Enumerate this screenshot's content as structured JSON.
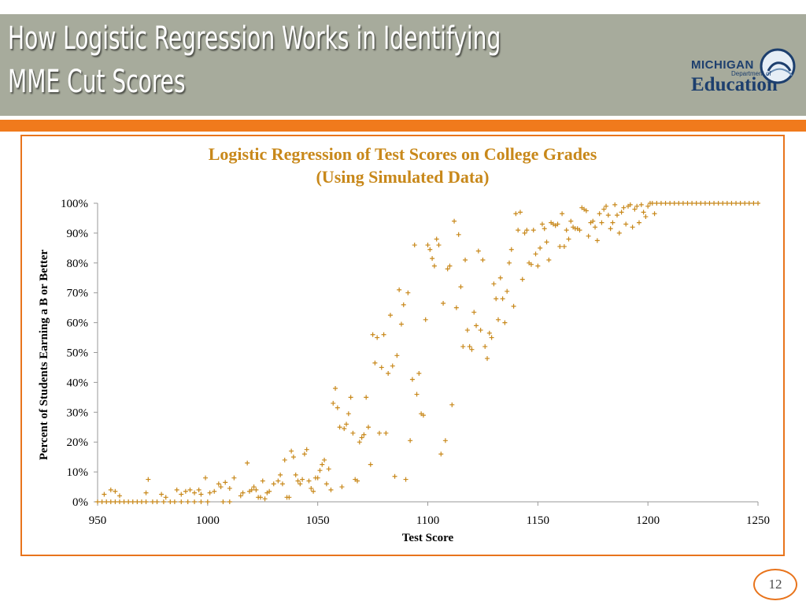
{
  "slide": {
    "title_line1": "How Logistic Regression Works in Identifying",
    "title_line2": "MME Cut Scores",
    "page_number": "12"
  },
  "logo": {
    "top": "MICHIGAN",
    "mid": "Department of",
    "main": "Education"
  },
  "colors": {
    "header": "#a7ab9c",
    "accent_orange": "#f07a1c",
    "marker": "#c8881a"
  },
  "chart_data": {
    "type": "scatter",
    "title_line1": "Logistic Regression of Test Scores on College Grades",
    "title_line2": "(Using Simulated Data)",
    "xlabel": "Test Score",
    "ylabel": "Percent of Students Earning a B or Better",
    "xlim": [
      950,
      1250
    ],
    "ylim": [
      0,
      100
    ],
    "xticks": [
      "950",
      "1000",
      "1050",
      "1100",
      "1150",
      "1200",
      "1250"
    ],
    "yticks": [
      "0%",
      "10%",
      "20%",
      "30%",
      "40%",
      "50%",
      "60%",
      "70%",
      "80%",
      "90%",
      "100%"
    ],
    "marker": "+",
    "grid": false,
    "points": [
      [
        950,
        0
      ],
      [
        952,
        0
      ],
      [
        954,
        0
      ],
      [
        956,
        0
      ],
      [
        958,
        0
      ],
      [
        960,
        0
      ],
      [
        962,
        0
      ],
      [
        964,
        0
      ],
      [
        966,
        0
      ],
      [
        968,
        0
      ],
      [
        970,
        0
      ],
      [
        972,
        0
      ],
      [
        975,
        0
      ],
      [
        977,
        0
      ],
      [
        980,
        0
      ],
      [
        983,
        0
      ],
      [
        985,
        0
      ],
      [
        988,
        0
      ],
      [
        991,
        0
      ],
      [
        994,
        0
      ],
      [
        997,
        0
      ],
      [
        1000,
        0
      ],
      [
        1007,
        0
      ],
      [
        1010,
        0
      ],
      [
        953,
        2.5
      ],
      [
        956,
        4
      ],
      [
        958,
        3.5
      ],
      [
        960,
        2
      ],
      [
        972,
        3
      ],
      [
        973,
        7.5
      ],
      [
        979,
        2.5
      ],
      [
        981,
        1.5
      ],
      [
        986,
        4
      ],
      [
        988,
        2.5
      ],
      [
        990,
        3.5
      ],
      [
        992,
        4
      ],
      [
        994,
        3
      ],
      [
        996,
        4
      ],
      [
        997,
        2.5
      ],
      [
        999,
        8
      ],
      [
        1001,
        3
      ],
      [
        1003,
        3.5
      ],
      [
        1005,
        6
      ],
      [
        1006,
        5
      ],
      [
        1008,
        6.5
      ],
      [
        1010,
        4.5
      ],
      [
        1012,
        8
      ],
      [
        1015,
        2
      ],
      [
        1016,
        3
      ],
      [
        1018,
        13
      ],
      [
        1019,
        3.5
      ],
      [
        1020,
        4
      ],
      [
        1021,
        5
      ],
      [
        1022,
        4
      ],
      [
        1023,
        1.5
      ],
      [
        1024,
        1.5
      ],
      [
        1025,
        7
      ],
      [
        1026,
        1
      ],
      [
        1027,
        3
      ],
      [
        1028,
        3.5
      ],
      [
        1030,
        6
      ],
      [
        1032,
        7
      ],
      [
        1033,
        9
      ],
      [
        1034,
        6
      ],
      [
        1035,
        14
      ],
      [
        1036,
        1.5
      ],
      [
        1037,
        1.5
      ],
      [
        1038,
        17
      ],
      [
        1039,
        15
      ],
      [
        1040,
        9
      ],
      [
        1041,
        7
      ],
      [
        1042,
        6
      ],
      [
        1043,
        7.5
      ],
      [
        1044,
        16
      ],
      [
        1045,
        17.5
      ],
      [
        1046,
        7
      ],
      [
        1047,
        4.5
      ],
      [
        1048,
        3.5
      ],
      [
        1049,
        8
      ],
      [
        1050,
        8
      ],
      [
        1051,
        10.5
      ],
      [
        1052,
        12.5
      ],
      [
        1053,
        14
      ],
      [
        1054,
        6
      ],
      [
        1055,
        11
      ],
      [
        1056,
        4
      ],
      [
        1057,
        33
      ],
      [
        1058,
        38
      ],
      [
        1059,
        31.5
      ],
      [
        1060,
        25
      ],
      [
        1061,
        5
      ],
      [
        1062,
        24.5
      ],
      [
        1063,
        26
      ],
      [
        1064,
        29.5
      ],
      [
        1065,
        35
      ],
      [
        1066,
        23
      ],
      [
        1067,
        7.5
      ],
      [
        1068,
        7
      ],
      [
        1069,
        20
      ],
      [
        1070,
        21.5
      ],
      [
        1071,
        22.5
      ],
      [
        1072,
        35
      ],
      [
        1073,
        25
      ],
      [
        1074,
        12.5
      ],
      [
        1075,
        56
      ],
      [
        1076,
        46.5
      ],
      [
        1077,
        55
      ],
      [
        1078,
        23
      ],
      [
        1079,
        45
      ],
      [
        1080,
        56
      ],
      [
        1081,
        23
      ],
      [
        1082,
        43
      ],
      [
        1083,
        62.5
      ],
      [
        1084,
        45.5
      ],
      [
        1085,
        8.5
      ],
      [
        1086,
        49
      ],
      [
        1087,
        71
      ],
      [
        1088,
        59.5
      ],
      [
        1089,
        66
      ],
      [
        1090,
        7.5
      ],
      [
        1091,
        70
      ],
      [
        1092,
        20.5
      ],
      [
        1093,
        41
      ],
      [
        1094,
        86
      ],
      [
        1095,
        36
      ],
      [
        1096,
        43
      ],
      [
        1097,
        29.5
      ],
      [
        1098,
        29
      ],
      [
        1099,
        61
      ],
      [
        1100,
        86
      ],
      [
        1101,
        84.5
      ],
      [
        1102,
        81.5
      ],
      [
        1103,
        79
      ],
      [
        1104,
        88
      ],
      [
        1105,
        86
      ],
      [
        1106,
        16
      ],
      [
        1107,
        66.5
      ],
      [
        1108,
        20.5
      ],
      [
        1109,
        78
      ],
      [
        1110,
        79
      ],
      [
        1111,
        32.5
      ],
      [
        1112,
        94
      ],
      [
        1113,
        65
      ],
      [
        1114,
        89.5
      ],
      [
        1115,
        72
      ],
      [
        1116,
        52
      ],
      [
        1117,
        81
      ],
      [
        1118,
        57.5
      ],
      [
        1119,
        52
      ],
      [
        1120,
        51
      ],
      [
        1121,
        63.5
      ],
      [
        1122,
        59
      ],
      [
        1123,
        84
      ],
      [
        1124,
        57.5
      ],
      [
        1125,
        81
      ],
      [
        1126,
        52
      ],
      [
        1127,
        48
      ],
      [
        1128,
        56.5
      ],
      [
        1129,
        55
      ],
      [
        1130,
        73
      ],
      [
        1131,
        68
      ],
      [
        1132,
        61
      ],
      [
        1133,
        75
      ],
      [
        1134,
        68
      ],
      [
        1135,
        60
      ],
      [
        1136,
        70.5
      ],
      [
        1137,
        80
      ],
      [
        1138,
        84.5
      ],
      [
        1139,
        65.5
      ],
      [
        1140,
        96.5
      ],
      [
        1141,
        91
      ],
      [
        1142,
        97
      ],
      [
        1143,
        74.5
      ],
      [
        1144,
        90
      ],
      [
        1145,
        91
      ],
      [
        1146,
        80
      ],
      [
        1147,
        79.5
      ],
      [
        1148,
        91
      ],
      [
        1149,
        83
      ],
      [
        1150,
        79
      ],
      [
        1151,
        85
      ],
      [
        1152,
        93
      ],
      [
        1153,
        91.5
      ],
      [
        1154,
        87
      ],
      [
        1155,
        81
      ],
      [
        1156,
        93.5
      ],
      [
        1157,
        93
      ],
      [
        1158,
        92.5
      ],
      [
        1159,
        93
      ],
      [
        1160,
        85.5
      ],
      [
        1161,
        96.5
      ],
      [
        1162,
        85.5
      ],
      [
        1163,
        91
      ],
      [
        1164,
        88
      ],
      [
        1165,
        94
      ],
      [
        1166,
        92
      ],
      [
        1167,
        91.5
      ],
      [
        1168,
        91.5
      ],
      [
        1169,
        91
      ],
      [
        1170,
        98.5
      ],
      [
        1171,
        98
      ],
      [
        1172,
        97.5
      ],
      [
        1173,
        89
      ],
      [
        1174,
        93.5
      ],
      [
        1175,
        94
      ],
      [
        1176,
        92
      ],
      [
        1177,
        87.5
      ],
      [
        1178,
        96.5
      ],
      [
        1179,
        93.5
      ],
      [
        1180,
        98
      ],
      [
        1181,
        99
      ],
      [
        1182,
        96
      ],
      [
        1183,
        91.5
      ],
      [
        1184,
        93.5
      ],
      [
        1185,
        99.5
      ],
      [
        1186,
        96
      ],
      [
        1187,
        90
      ],
      [
        1188,
        97
      ],
      [
        1189,
        98.5
      ],
      [
        1190,
        93
      ],
      [
        1191,
        99
      ],
      [
        1192,
        99.5
      ],
      [
        1193,
        92
      ],
      [
        1194,
        98
      ],
      [
        1195,
        99
      ],
      [
        1196,
        93.5
      ],
      [
        1197,
        99.5
      ],
      [
        1198,
        97
      ],
      [
        1199,
        95.5
      ],
      [
        1200,
        99
      ],
      [
        1201,
        100
      ],
      [
        1202,
        100
      ],
      [
        1203,
        96.5
      ],
      [
        1204,
        100
      ],
      [
        1206,
        100
      ],
      [
        1208,
        100
      ],
      [
        1210,
        100
      ],
      [
        1212,
        100
      ],
      [
        1214,
        100
      ],
      [
        1216,
        100
      ],
      [
        1218,
        100
      ],
      [
        1220,
        100
      ],
      [
        1222,
        100
      ],
      [
        1224,
        100
      ],
      [
        1226,
        100
      ],
      [
        1228,
        100
      ],
      [
        1230,
        100
      ],
      [
        1232,
        100
      ],
      [
        1234,
        100
      ],
      [
        1236,
        100
      ],
      [
        1238,
        100
      ],
      [
        1240,
        100
      ],
      [
        1242,
        100
      ],
      [
        1244,
        100
      ],
      [
        1246,
        100
      ],
      [
        1248,
        100
      ],
      [
        1250,
        100
      ]
    ]
  }
}
